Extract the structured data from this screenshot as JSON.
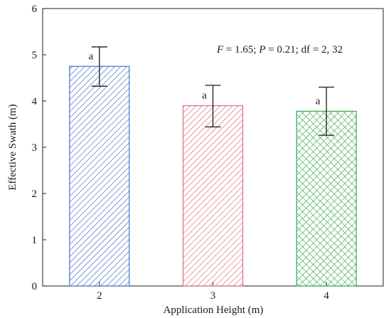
{
  "chart_data": {
    "type": "bar",
    "xlabel": "Application Height (m)",
    "ylabel": "Effective Swath (m)",
    "ylim": [
      0,
      6
    ],
    "yticks": [
      0,
      1,
      2,
      3,
      4,
      5,
      6
    ],
    "categories": [
      "2",
      "3",
      "4"
    ],
    "values": [
      4.75,
      3.9,
      3.78
    ],
    "error_lower": [
      4.32,
      3.44,
      3.26
    ],
    "error_upper": [
      5.17,
      4.34,
      4.3
    ],
    "significance_letters": [
      "a",
      "a",
      "a"
    ],
    "bar_colors": [
      "#4a72c8",
      "#d9707c",
      "#3aa653"
    ],
    "bar_patterns": [
      "diagonal-hatch",
      "diagonal-hatch",
      "crosshatch"
    ],
    "annotation": {
      "f_symbol": "F",
      "f_value": " = 1.65; ",
      "p_symbol": "P",
      "p_value": " = 0.21; df = 2, 32"
    },
    "grid": false,
    "legend": "none"
  }
}
